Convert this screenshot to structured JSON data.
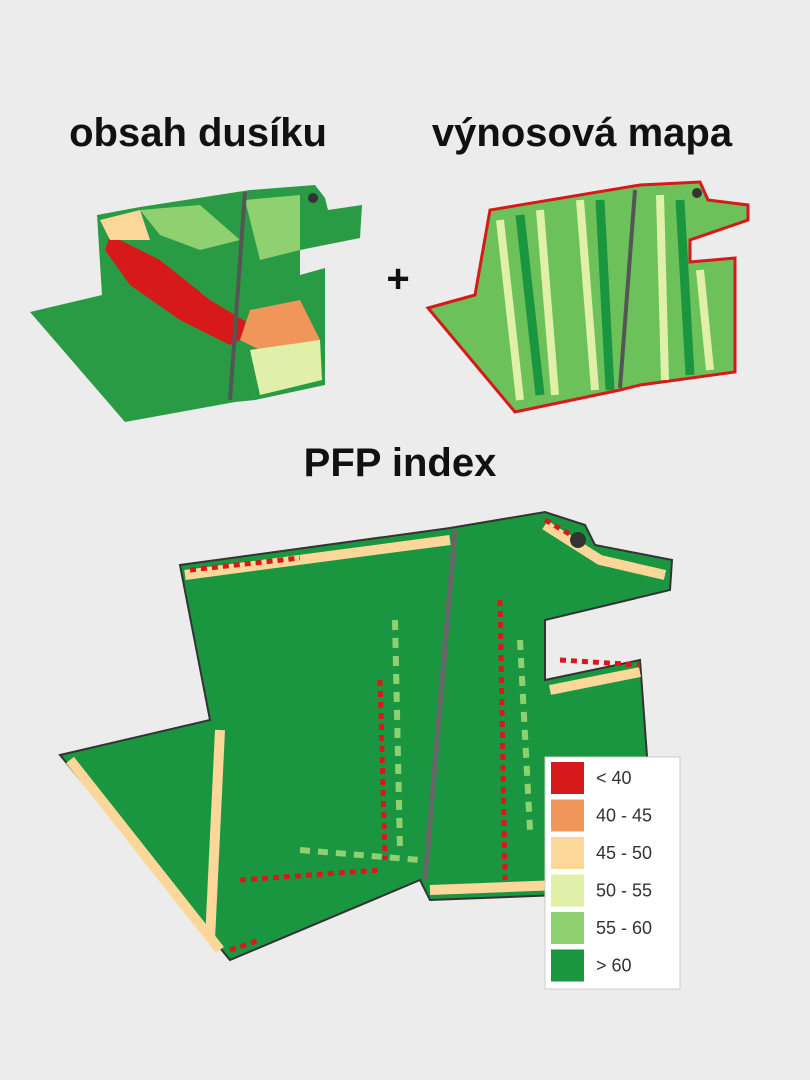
{
  "titles": {
    "left": "obsah dusíku",
    "right": "výnosová mapa",
    "plus": "+",
    "main": "PFP index"
  },
  "legend": {
    "items": [
      {
        "label": "< 40",
        "color": "#d7191c"
      },
      {
        "label": "40 - 45",
        "color": "#f0965a"
      },
      {
        "label": "45 - 50",
        "color": "#fbd89a"
      },
      {
        "label": "50 - 55",
        "color": "#e0f0a8"
      },
      {
        "label": "55 - 60",
        "color": "#8fd170"
      },
      {
        "label": "> 60",
        "color": "#1a9641"
      }
    ]
  }
}
